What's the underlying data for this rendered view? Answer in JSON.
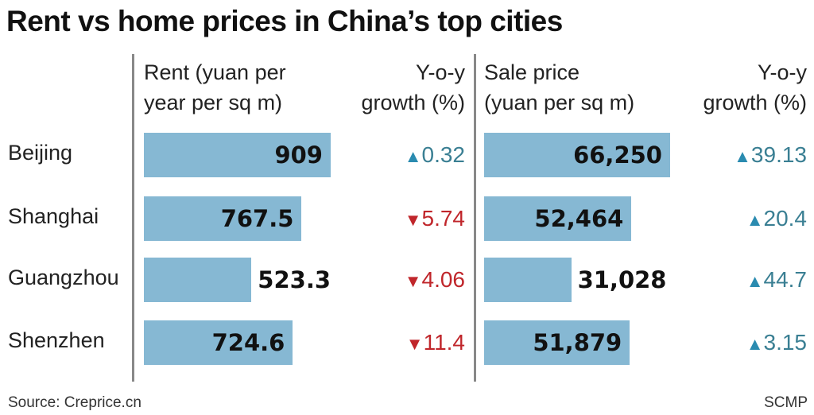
{
  "chart_data": {
    "type": "table",
    "title": "Rent vs home prices in China’s top cities",
    "columns": [
      "Rent (yuan per year per sq m)",
      "Y-o-y growth (%)",
      "Sale price (yuan per sq m)",
      "Y-o-y growth (%)"
    ],
    "headers": {
      "rent": "Rent (yuan per\nyear per sq m)",
      "rent_growth": "Y-o-y\ngrowth (%)",
      "sale": "Sale price\n(yuan per sq m)",
      "sale_growth": "Y-o-y\ngrowth (%)"
    },
    "rows": [
      {
        "city": "Beijing",
        "rent": 909,
        "rent_label": "909",
        "rent_growth": 0.32,
        "rent_growth_label": "0.32",
        "sale": 66250,
        "sale_label": "66,250",
        "sale_growth": 39.13,
        "sale_growth_label": "39.13"
      },
      {
        "city": "Shanghai",
        "rent": 767.5,
        "rent_label": "767.5",
        "rent_growth": -5.74,
        "rent_growth_label": "5.74",
        "sale": 52464,
        "sale_label": "52,464",
        "sale_growth": 20.4,
        "sale_growth_label": "20.4"
      },
      {
        "city": "Guangzhou",
        "rent": 523.3,
        "rent_label": "523.3",
        "rent_growth": -4.06,
        "rent_growth_label": "4.06",
        "sale": 31028,
        "sale_label": "31,028",
        "sale_growth": 44.7,
        "sale_growth_label": "44.7"
      },
      {
        "city": "Shenzhen",
        "rent": 724.6,
        "rent_label": "724.6",
        "rent_growth": -11.4,
        "rent_growth_label": "11.4",
        "sale": 51879,
        "sale_label": "51,879",
        "sale_growth": 3.15,
        "sale_growth_label": "3.15"
      }
    ],
    "colors": {
      "bar": "#86b8d3",
      "up": "#2a8bb0",
      "up_text": "#3a7f93",
      "down": "#c0262b"
    }
  },
  "footer": {
    "source": "Source: Creprice.cn",
    "credit": "SCMP"
  }
}
